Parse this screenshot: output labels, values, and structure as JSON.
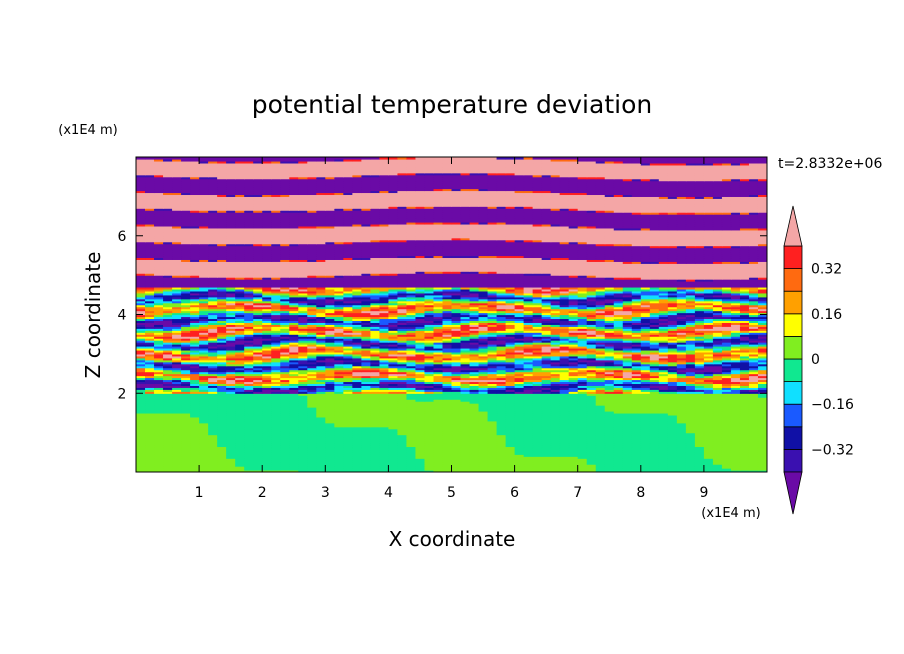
{
  "chart_data": {
    "type": "heatmap",
    "title": "potential temperature deviation",
    "xlabel": "X coordinate",
    "ylabel": "Z coordinate",
    "x_unit": "(x1E4 m)",
    "y_unit": "(x1E4 m)",
    "time_label": "t=2.8332e+06",
    "xlim": [
      0,
      10
    ],
    "ylim": [
      0,
      8
    ],
    "x_ticks": [
      1,
      2,
      3,
      4,
      5,
      6,
      7,
      8,
      9
    ],
    "y_ticks": [
      2,
      4,
      6
    ],
    "x_tick_labels": [
      "1",
      "2",
      "3",
      "4",
      "5",
      "6",
      "7",
      "8",
      "9"
    ],
    "y_tick_labels": [
      "2",
      "4",
      "6"
    ],
    "colorbar": {
      "levels": [
        -0.4,
        -0.32,
        -0.24,
        -0.16,
        -0.08,
        0,
        0.08,
        0.16,
        0.24,
        0.32,
        0.4
      ],
      "colors": [
        "#6a0aa6",
        "#3a10b0",
        "#1010a6",
        "#1a5aff",
        "#10e0ff",
        "#10e890",
        "#80ee20",
        "#ffff00",
        "#ffa000",
        "#ff6a10",
        "#ff2020",
        "#f4a6a6"
      ],
      "tick_values": [
        0.32,
        0.16,
        0,
        -0.16,
        -0.32
      ],
      "tick_labels": [
        "0.32",
        "0.16",
        "0",
        "−0.16",
        "−0.32"
      ],
      "extend": "both"
    },
    "field_description_bands": [
      {
        "z_range": [
          0,
          2.0
        ],
        "pattern": "mixed",
        "classes": [
          5,
          6
        ]
      },
      {
        "z_range": [
          2.0,
          4.7
        ],
        "pattern": "turbulent",
        "classes": [
          0,
          1,
          2,
          3,
          4,
          5,
          6,
          7,
          8,
          9,
          10,
          11
        ]
      },
      {
        "z_range": [
          4.7,
          8.0
        ],
        "pattern": "stratified",
        "classes": [
          0,
          11
        ]
      }
    ]
  }
}
